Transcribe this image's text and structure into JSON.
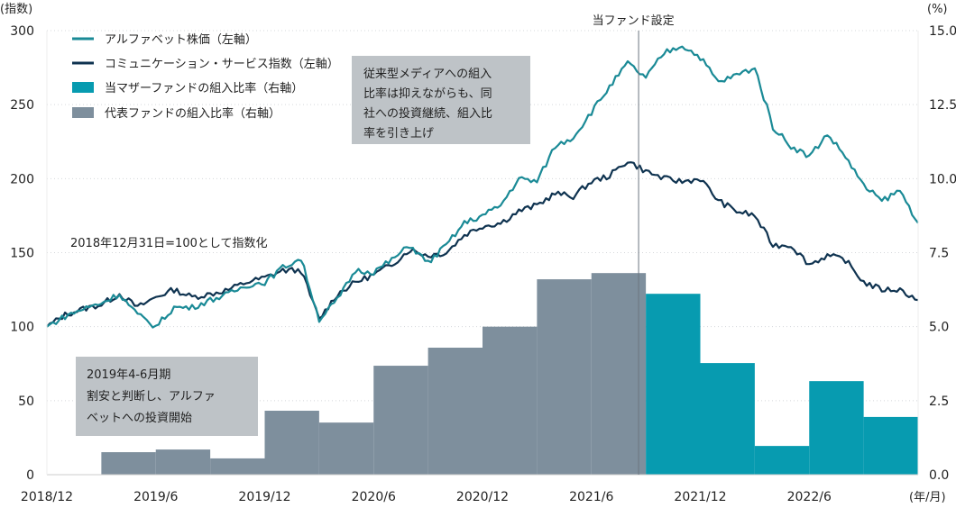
{
  "chart_data": {
    "type": "line+bar",
    "left_axis_label": "(指数)",
    "right_axis_label": "(%)",
    "x_unit_label": "(年/月)",
    "left_ylim": [
      0,
      300
    ],
    "right_ylim": [
      0,
      15
    ],
    "left_ticks": [
      "0",
      "50",
      "100",
      "150",
      "200",
      "250",
      "300"
    ],
    "right_ticks": [
      "0.0",
      "2.5",
      "5.0",
      "7.5",
      "10.0",
      "12.5",
      "15.0"
    ],
    "x_ticks": [
      {
        "label": "2018/12",
        "month": 0
      },
      {
        "label": "2019/6",
        "month": 6
      },
      {
        "label": "2019/12",
        "month": 12
      },
      {
        "label": "2020/6",
        "month": 18
      },
      {
        "label": "2020/12",
        "month": 24
      },
      {
        "label": "2021/6",
        "month": 30
      },
      {
        "label": "2021/12",
        "month": 36
      },
      {
        "label": "2022/6",
        "month": 42
      }
    ],
    "grid": true,
    "legend": [
      {
        "label": "アルファベット株価（左軸）",
        "type": "line",
        "color": "#1a8a96"
      },
      {
        "label": "コミュニケーション・サービス指数（左軸）",
        "type": "line",
        "color": "#0f3350"
      },
      {
        "label": "当マザーファンドの組入比率（右軸）",
        "type": "bar",
        "color": "#079bb0"
      },
      {
        "label": "代表ファンドの組入比率（右軸）",
        "type": "bar",
        "color": "#7e8f9d"
      }
    ],
    "series": [
      {
        "name": "アルファベット株価",
        "axis": "left",
        "color": "#1a8a96",
        "values": [
          100,
          107,
          112,
          116,
          122,
          108,
          100,
          113,
          113,
          118,
          122,
          128,
          130,
          140,
          146,
          105,
          118,
          138,
          137,
          145,
          155,
          143,
          155,
          170,
          175,
          182,
          200,
          198,
          222,
          228,
          245,
          262,
          278,
          268,
          285,
          290,
          282,
          265,
          270,
          275,
          235,
          222,
          215,
          230,
          215,
          195,
          185,
          192,
          170
        ]
      },
      {
        "name": "コミュニケーション・サービス指数",
        "axis": "left",
        "color": "#0f3350",
        "values": [
          100,
          108,
          112,
          115,
          122,
          113,
          120,
          125,
          120,
          122,
          125,
          130,
          133,
          138,
          138,
          105,
          122,
          130,
          135,
          142,
          152,
          148,
          150,
          162,
          168,
          170,
          178,
          182,
          190,
          188,
          198,
          202,
          212,
          205,
          200,
          198,
          200,
          185,
          178,
          175,
          155,
          155,
          142,
          148,
          145,
          130,
          125,
          125,
          118
        ]
      }
    ],
    "bars": {
      "quarters": [
        "2019/Q2",
        "2019/Q3",
        "2019/Q4",
        "2020/Q1",
        "2020/Q2",
        "2020/Q3",
        "2020/Q4",
        "2021/Q1",
        "2021/Q2",
        "2021/Q3",
        "2021/Q4",
        "2022/Q1",
        "2022/Q2",
        "2022/Q3",
        "2022/Q4"
      ],
      "values_pct": [
        0.76,
        0.85,
        0.55,
        2.16,
        1.76,
        3.68,
        4.29,
        5.0,
        6.6,
        6.81,
        6.11,
        3.77,
        0.97,
        3.16,
        1.95
      ],
      "fund": [
        "rep",
        "rep",
        "rep",
        "rep",
        "rep",
        "rep",
        "rep",
        "rep",
        "rep",
        "rep",
        "mother",
        "mother",
        "mother",
        "mother",
        "mother"
      ],
      "colors": {
        "rep": "#7e8f9d",
        "mother": "#079bb0"
      }
    },
    "marker": {
      "label": "当ファンド設定",
      "month": 32.6
    },
    "annotations": {
      "index_note": "2018年12月31日=100として指数化",
      "box1": [
        "2019年4-6月期",
        "割安と判断し、アルファ",
        "ベットへの投資開始"
      ],
      "box2": [
        "従来型メディアへの組入",
        "比率は抑えながらも、同",
        "社への投資継続、組入比",
        "率を引き上げ"
      ]
    }
  }
}
